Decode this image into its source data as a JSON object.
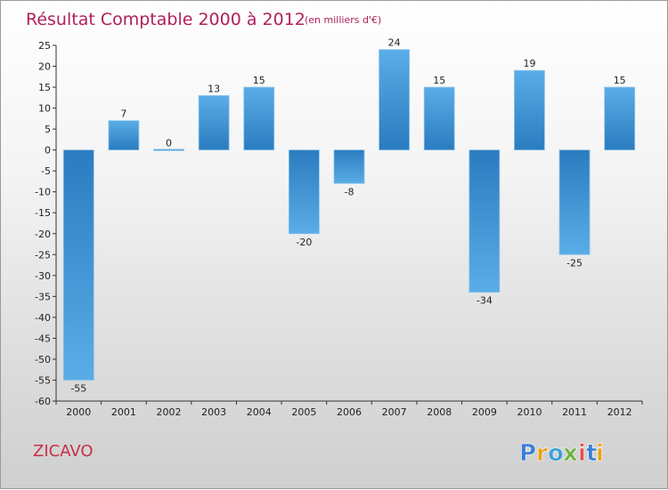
{
  "header": {
    "title": "Résultat Comptable 2000 à 2012",
    "subtitle": "(en milliers d'€)"
  },
  "footer": {
    "commune": "ZICAVO",
    "logo_text": "Proxiti",
    "logo_letters": [
      {
        "ch": "P",
        "color": "#3a7fd5"
      },
      {
        "ch": "r",
        "color": "#e8a21a"
      },
      {
        "ch": "o",
        "color": "#3aa0d8"
      },
      {
        "ch": "x",
        "color": "#6cb33f"
      },
      {
        "ch": "i",
        "color": "#e2504a"
      },
      {
        "ch": "t",
        "color": "#3a7fd5"
      },
      {
        "ch": "i",
        "color": "#e8a21a"
      }
    ]
  },
  "chart_data": {
    "type": "bar",
    "title": "Résultat Comptable 2000 à 2012",
    "subtitle": "(en milliers d'€)",
    "categories": [
      "2000",
      "2001",
      "2002",
      "2003",
      "2004",
      "2005",
      "2006",
      "2007",
      "2008",
      "2009",
      "2010",
      "2011",
      "2012"
    ],
    "values": [
      -55,
      7,
      0,
      13,
      15,
      -20,
      -8,
      24,
      15,
      -34,
      19,
      -25,
      15
    ],
    "ylim": [
      -60,
      25
    ],
    "yticks": [
      25,
      20,
      15,
      10,
      5,
      0,
      -5,
      -10,
      -15,
      -20,
      -25,
      -30,
      -35,
      -40,
      -45,
      -50,
      -55,
      -60
    ],
    "xlabel": "",
    "ylabel": "",
    "grid": false,
    "legend": "none",
    "bar_color_dark": "#2a7cc0",
    "bar_color_light": "#5aade6"
  }
}
